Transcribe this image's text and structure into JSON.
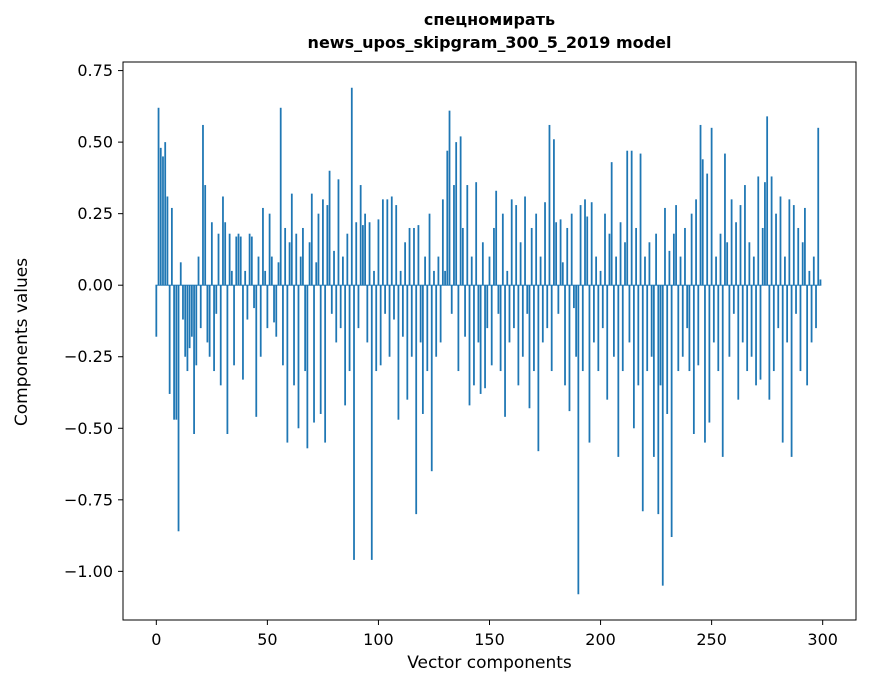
{
  "figure": {
    "background": "#ffffff",
    "frame_color": "#000000"
  },
  "chart_data": {
    "type": "bar",
    "title_line1": "спецномирать",
    "title_line2": "news_upos_skipgram_300_5_2019 model",
    "xlabel": "Vector components",
    "ylabel": "Components values",
    "bar_color": "#1f77b4",
    "xlim": [
      -15,
      315
    ],
    "ylim": [
      -1.17,
      0.78
    ],
    "grid": false,
    "legend": "none",
    "xticks": [
      0,
      50,
      100,
      150,
      200,
      250,
      300
    ],
    "xtick_labels": [
      "0",
      "50",
      "100",
      "150",
      "200",
      "250",
      "300"
    ],
    "yticks": [
      0.75,
      0.5,
      0.25,
      0.0,
      -0.25,
      -0.5,
      -0.75,
      -1.0
    ],
    "ytick_labels": [
      "0.75",
      "0.50",
      "0.25",
      "0.00",
      "−0.25",
      "−0.50",
      "−0.75",
      "−1.00"
    ],
    "values": [
      -0.18,
      0.62,
      0.48,
      0.45,
      0.5,
      0.31,
      -0.38,
      0.27,
      -0.47,
      -0.47,
      -0.86,
      0.08,
      -0.12,
      -0.25,
      -0.3,
      -0.22,
      -0.18,
      -0.52,
      -0.28,
      0.1,
      -0.15,
      0.56,
      0.35,
      -0.2,
      -0.25,
      0.22,
      -0.3,
      -0.1,
      0.18,
      -0.35,
      0.31,
      0.22,
      -0.52,
      0.18,
      0.05,
      -0.28,
      0.17,
      0.18,
      0.17,
      -0.33,
      0.05,
      -0.12,
      0.18,
      0.17,
      -0.08,
      -0.46,
      0.1,
      -0.25,
      0.27,
      0.05,
      -0.15,
      0.25,
      0.1,
      -0.13,
      -0.18,
      0.08,
      0.62,
      -0.28,
      0.2,
      -0.55,
      0.15,
      0.32,
      -0.35,
      0.18,
      -0.5,
      0.1,
      0.2,
      -0.3,
      -0.57,
      0.15,
      0.32,
      -0.48,
      0.08,
      0.25,
      -0.45,
      0.3,
      -0.55,
      0.28,
      0.4,
      -0.1,
      0.12,
      -0.2,
      0.37,
      -0.15,
      0.1,
      -0.42,
      0.18,
      -0.3,
      0.69,
      -0.96,
      0.22,
      -0.15,
      0.35,
      0.21,
      0.25,
      -0.2,
      0.22,
      -0.96,
      0.05,
      -0.3,
      0.23,
      -0.28,
      0.3,
      -0.1,
      0.3,
      -0.25,
      0.31,
      -0.12,
      0.28,
      -0.47,
      0.05,
      -0.18,
      0.15,
      -0.4,
      0.2,
      -0.25,
      0.2,
      -0.8,
      0.21,
      -0.2,
      -0.45,
      0.1,
      -0.3,
      0.25,
      -0.65,
      0.05,
      -0.25,
      0.1,
      -0.2,
      0.3,
      0.05,
      0.47,
      0.61,
      -0.1,
      0.35,
      0.5,
      -0.3,
      0.52,
      0.2,
      -0.18,
      0.35,
      -0.42,
      0.1,
      -0.35,
      0.36,
      -0.2,
      -0.38,
      0.15,
      -0.36,
      -0.15,
      0.1,
      -0.28,
      0.2,
      0.33,
      -0.1,
      -0.3,
      0.25,
      -0.46,
      0.05,
      -0.2,
      0.3,
      -0.15,
      0.28,
      -0.35,
      0.15,
      -0.25,
      0.31,
      -0.1,
      -0.43,
      0.2,
      -0.3,
      0.25,
      -0.58,
      0.1,
      -0.2,
      0.29,
      -0.15,
      0.56,
      -0.3,
      0.51,
      0.22,
      -0.1,
      0.23,
      0.08,
      -0.35,
      0.2,
      -0.44,
      0.25,
      -0.08,
      -0.25,
      -1.08,
      0.28,
      -0.3,
      0.3,
      0.24,
      -0.55,
      0.29,
      -0.2,
      0.1,
      -0.3,
      0.05,
      -0.15,
      0.25,
      -0.4,
      0.18,
      0.43,
      -0.25,
      0.1,
      -0.6,
      0.22,
      -0.3,
      0.15,
      0.47,
      -0.2,
      0.47,
      -0.5,
      0.2,
      -0.35,
      0.46,
      -0.79,
      0.1,
      -0.3,
      0.15,
      -0.25,
      -0.6,
      0.18,
      -0.8,
      -0.35,
      -1.05,
      0.27,
      -0.45,
      0.12,
      -0.88,
      0.18,
      0.28,
      -0.3,
      0.1,
      -0.25,
      0.2,
      -0.15,
      -0.3,
      0.25,
      -0.52,
      0.3,
      -0.28,
      0.56,
      0.44,
      -0.55,
      0.39,
      -0.48,
      0.55,
      -0.2,
      0.1,
      -0.3,
      0.18,
      -0.6,
      0.46,
      0.15,
      -0.25,
      0.3,
      -0.1,
      0.22,
      -0.4,
      0.28,
      -0.2,
      0.35,
      -0.3,
      0.15,
      -0.25,
      0.1,
      -0.35,
      0.38,
      -0.33,
      0.2,
      0.36,
      0.59,
      -0.4,
      0.38,
      -0.3,
      0.25,
      -0.15,
      0.31,
      -0.55,
      0.1,
      -0.2,
      0.3,
      -0.6,
      0.28,
      -0.1,
      0.2,
      -0.3,
      0.15,
      0.27,
      -0.35,
      0.05,
      -0.2,
      0.1,
      -0.15,
      0.55,
      0.02
    ]
  }
}
